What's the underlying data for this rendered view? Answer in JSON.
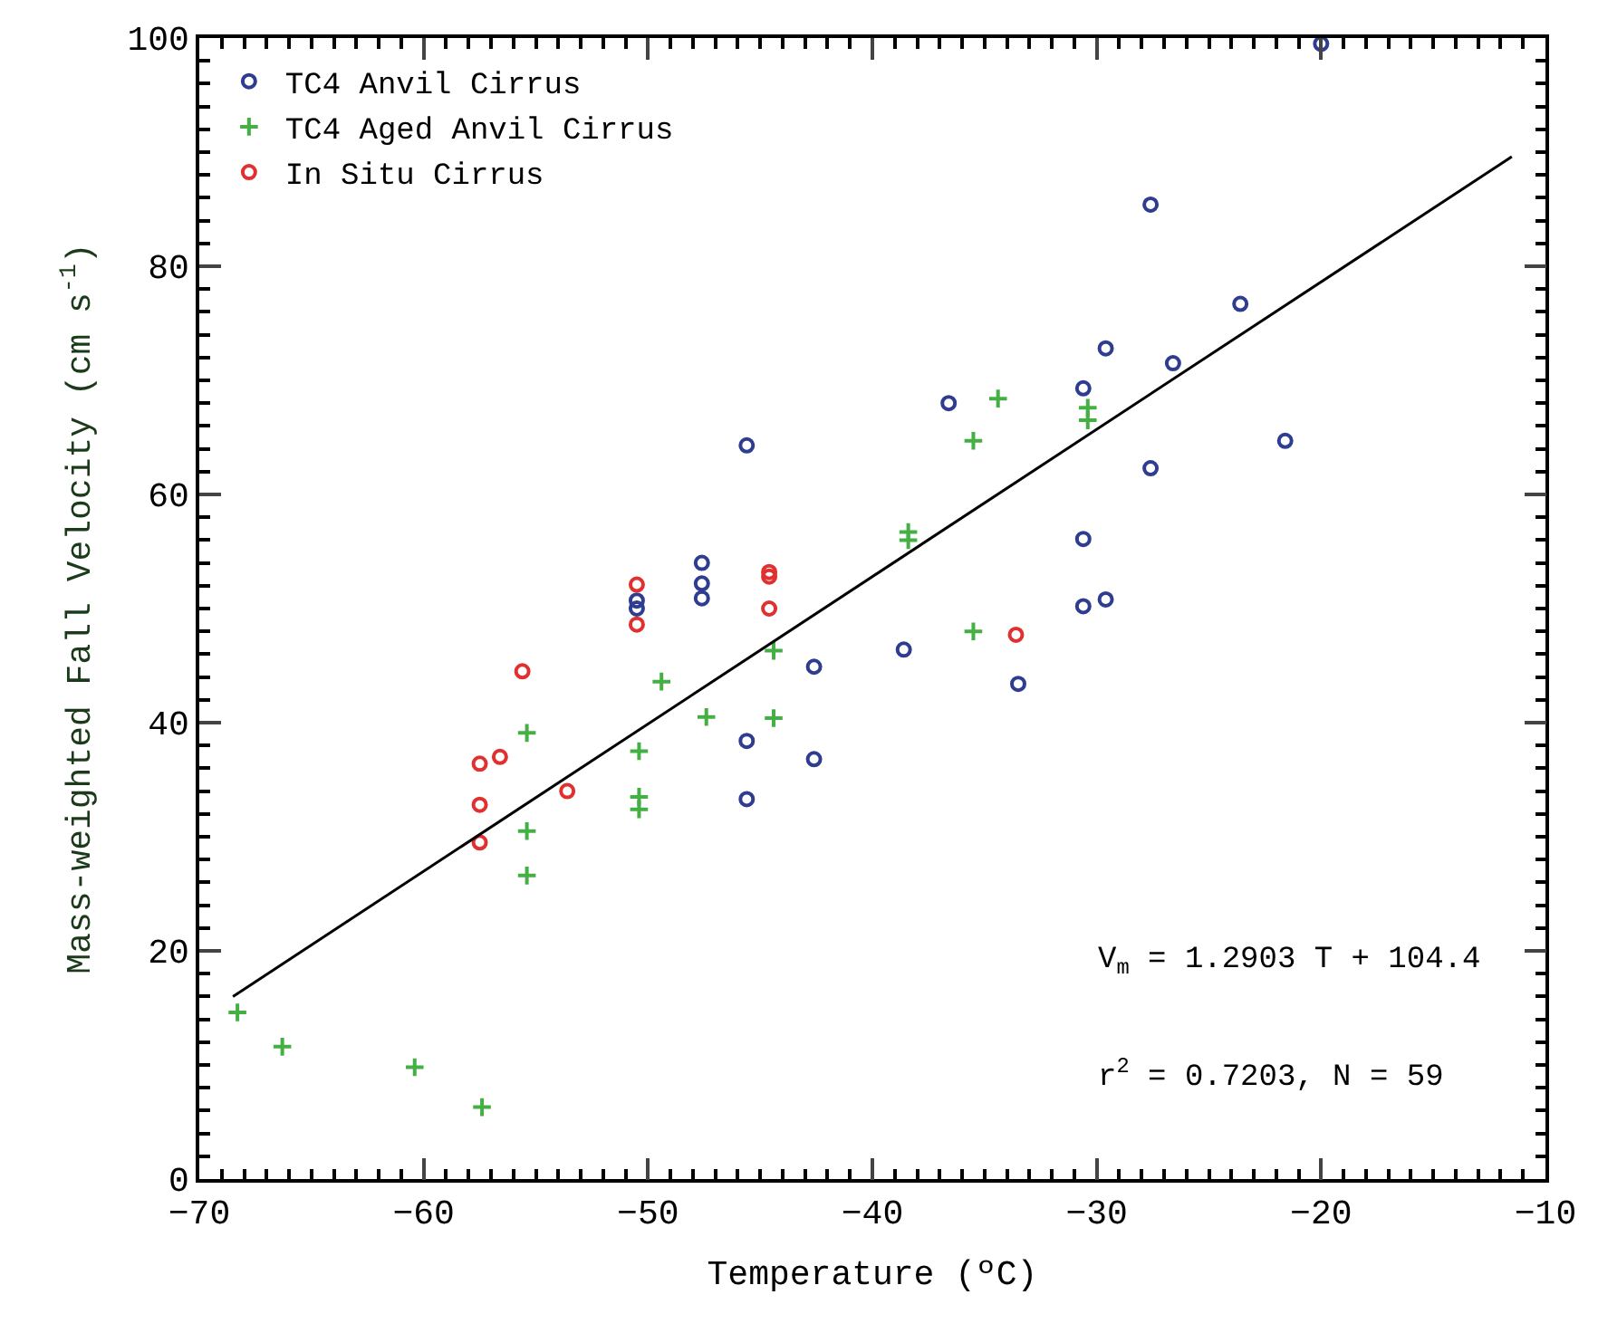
{
  "chart_data": {
    "type": "scatter",
    "xlabel": "Temperature (ºC)",
    "ylabel": "Mass-weighted Fall Velocity (cm s$^{-1}$)",
    "xlim": [
      -70,
      -10
    ],
    "xticks": [
      -70,
      -60,
      -50,
      -40,
      -30,
      -20,
      -10
    ],
    "ylim": [
      0,
      100
    ],
    "yticks": [
      0,
      20,
      40,
      60,
      80,
      100
    ],
    "legend": "top left",
    "series": [
      {
        "name": "TC4 Anvil Cirrus",
        "color": "#2e3d8f",
        "marker": "circle",
        "x": [
          -20,
          -27.6,
          -23.6,
          -29.6,
          -26.6,
          -30.6,
          -36.6,
          -21.6,
          -27.6,
          -30.6,
          -30.6,
          -29.6,
          -38.6,
          -45.6,
          -47.6,
          -47.6,
          -47.6,
          -50.5,
          -50.5,
          -42.6,
          -33.5,
          -45.6,
          -42.6,
          -45.6
        ],
        "values": [
          99.5,
          85.4,
          76.7,
          72.8,
          71.5,
          69.3,
          68.0,
          64.7,
          62.3,
          56.1,
          50.2,
          50.8,
          46.4,
          64.3,
          54.0,
          52.2,
          50.9,
          50.7,
          50.0,
          44.9,
          43.4,
          38.4,
          36.8,
          33.3
        ]
      },
      {
        "name": "TC4 Aged Anvil Cirrus",
        "color": "#44b044",
        "marker": "cross",
        "x": [
          -34.4,
          -35.5,
          -30.4,
          -30.4,
          -38.4,
          -38.4,
          -35.5,
          -44.4,
          -49.4,
          -47.4,
          -44.4,
          -50.4,
          -50.4,
          -50.4,
          -55.4,
          -55.4,
          -55.4,
          -68.3,
          -66.3,
          -60.4,
          -57.4
        ],
        "values": [
          68.4,
          64.7,
          67.6,
          66.5,
          56.7,
          56.0,
          48.0,
          46.3,
          43.6,
          40.5,
          40.4,
          37.5,
          33.5,
          32.4,
          39.1,
          30.5,
          26.6,
          14.6,
          11.6,
          9.8,
          6.3
        ]
      },
      {
        "name": "In Situ Cirrus",
        "color": "#e03030",
        "marker": "circle",
        "x": [
          -33.6,
          -50.5,
          -50.5,
          -44.6,
          -44.6,
          -44.6,
          -55.6,
          -56.6,
          -57.5,
          -57.5,
          -57.5,
          -53.6
        ],
        "values": [
          47.7,
          52.1,
          48.6,
          53.2,
          52.8,
          50.0,
          44.5,
          37.0,
          36.4,
          32.8,
          29.5,
          34.0
        ]
      },
      {
        "type": "line",
        "color": "#000000",
        "marker": "none",
        "x": [
          -68.5,
          -11.5
        ],
        "values": [
          16.0,
          89.6
        ]
      }
    ],
    "annotations": [
      "V$_{m}$ = 1.2903 T + 104.4",
      "r$^{2}$ = 0.7203, N = 59"
    ]
  }
}
